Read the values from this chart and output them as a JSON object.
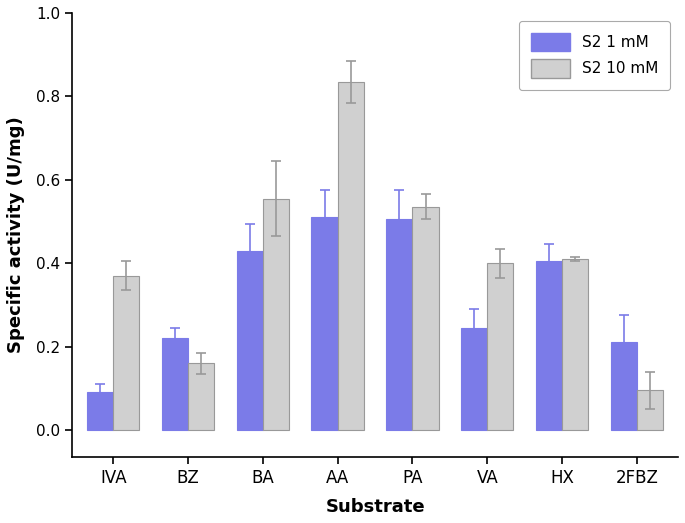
{
  "categories": [
    "IVA",
    "BZ",
    "BA",
    "AA",
    "PA",
    "VA",
    "HX",
    "2FBZ"
  ],
  "s2_1mM_values": [
    0.09,
    0.22,
    0.43,
    0.51,
    0.505,
    0.245,
    0.405,
    0.21
  ],
  "s2_10mM_values": [
    0.37,
    0.16,
    0.555,
    0.835,
    0.535,
    0.4,
    0.41,
    0.095
  ],
  "s2_1mM_errors": [
    0.02,
    0.025,
    0.065,
    0.065,
    0.07,
    0.045,
    0.04,
    0.065
  ],
  "s2_10mM_errors": [
    0.035,
    0.025,
    0.09,
    0.05,
    0.03,
    0.035,
    0.005,
    0.045
  ],
  "bar_color_1mM": "#7B7BE8",
  "bar_color_10mM": "#D0D0D0",
  "hatch_1mM": "////",
  "ylabel": "Specific activity (U/mg)",
  "xlabel": "Substrate",
  "ylim": [
    -0.065,
    1.0
  ],
  "yticks": [
    0.0,
    0.2,
    0.4,
    0.6,
    0.8,
    1.0
  ],
  "legend_labels": [
    "S2 1 mM",
    "S2 10 mM"
  ],
  "bar_width": 0.35,
  "background_color": "#ffffff"
}
